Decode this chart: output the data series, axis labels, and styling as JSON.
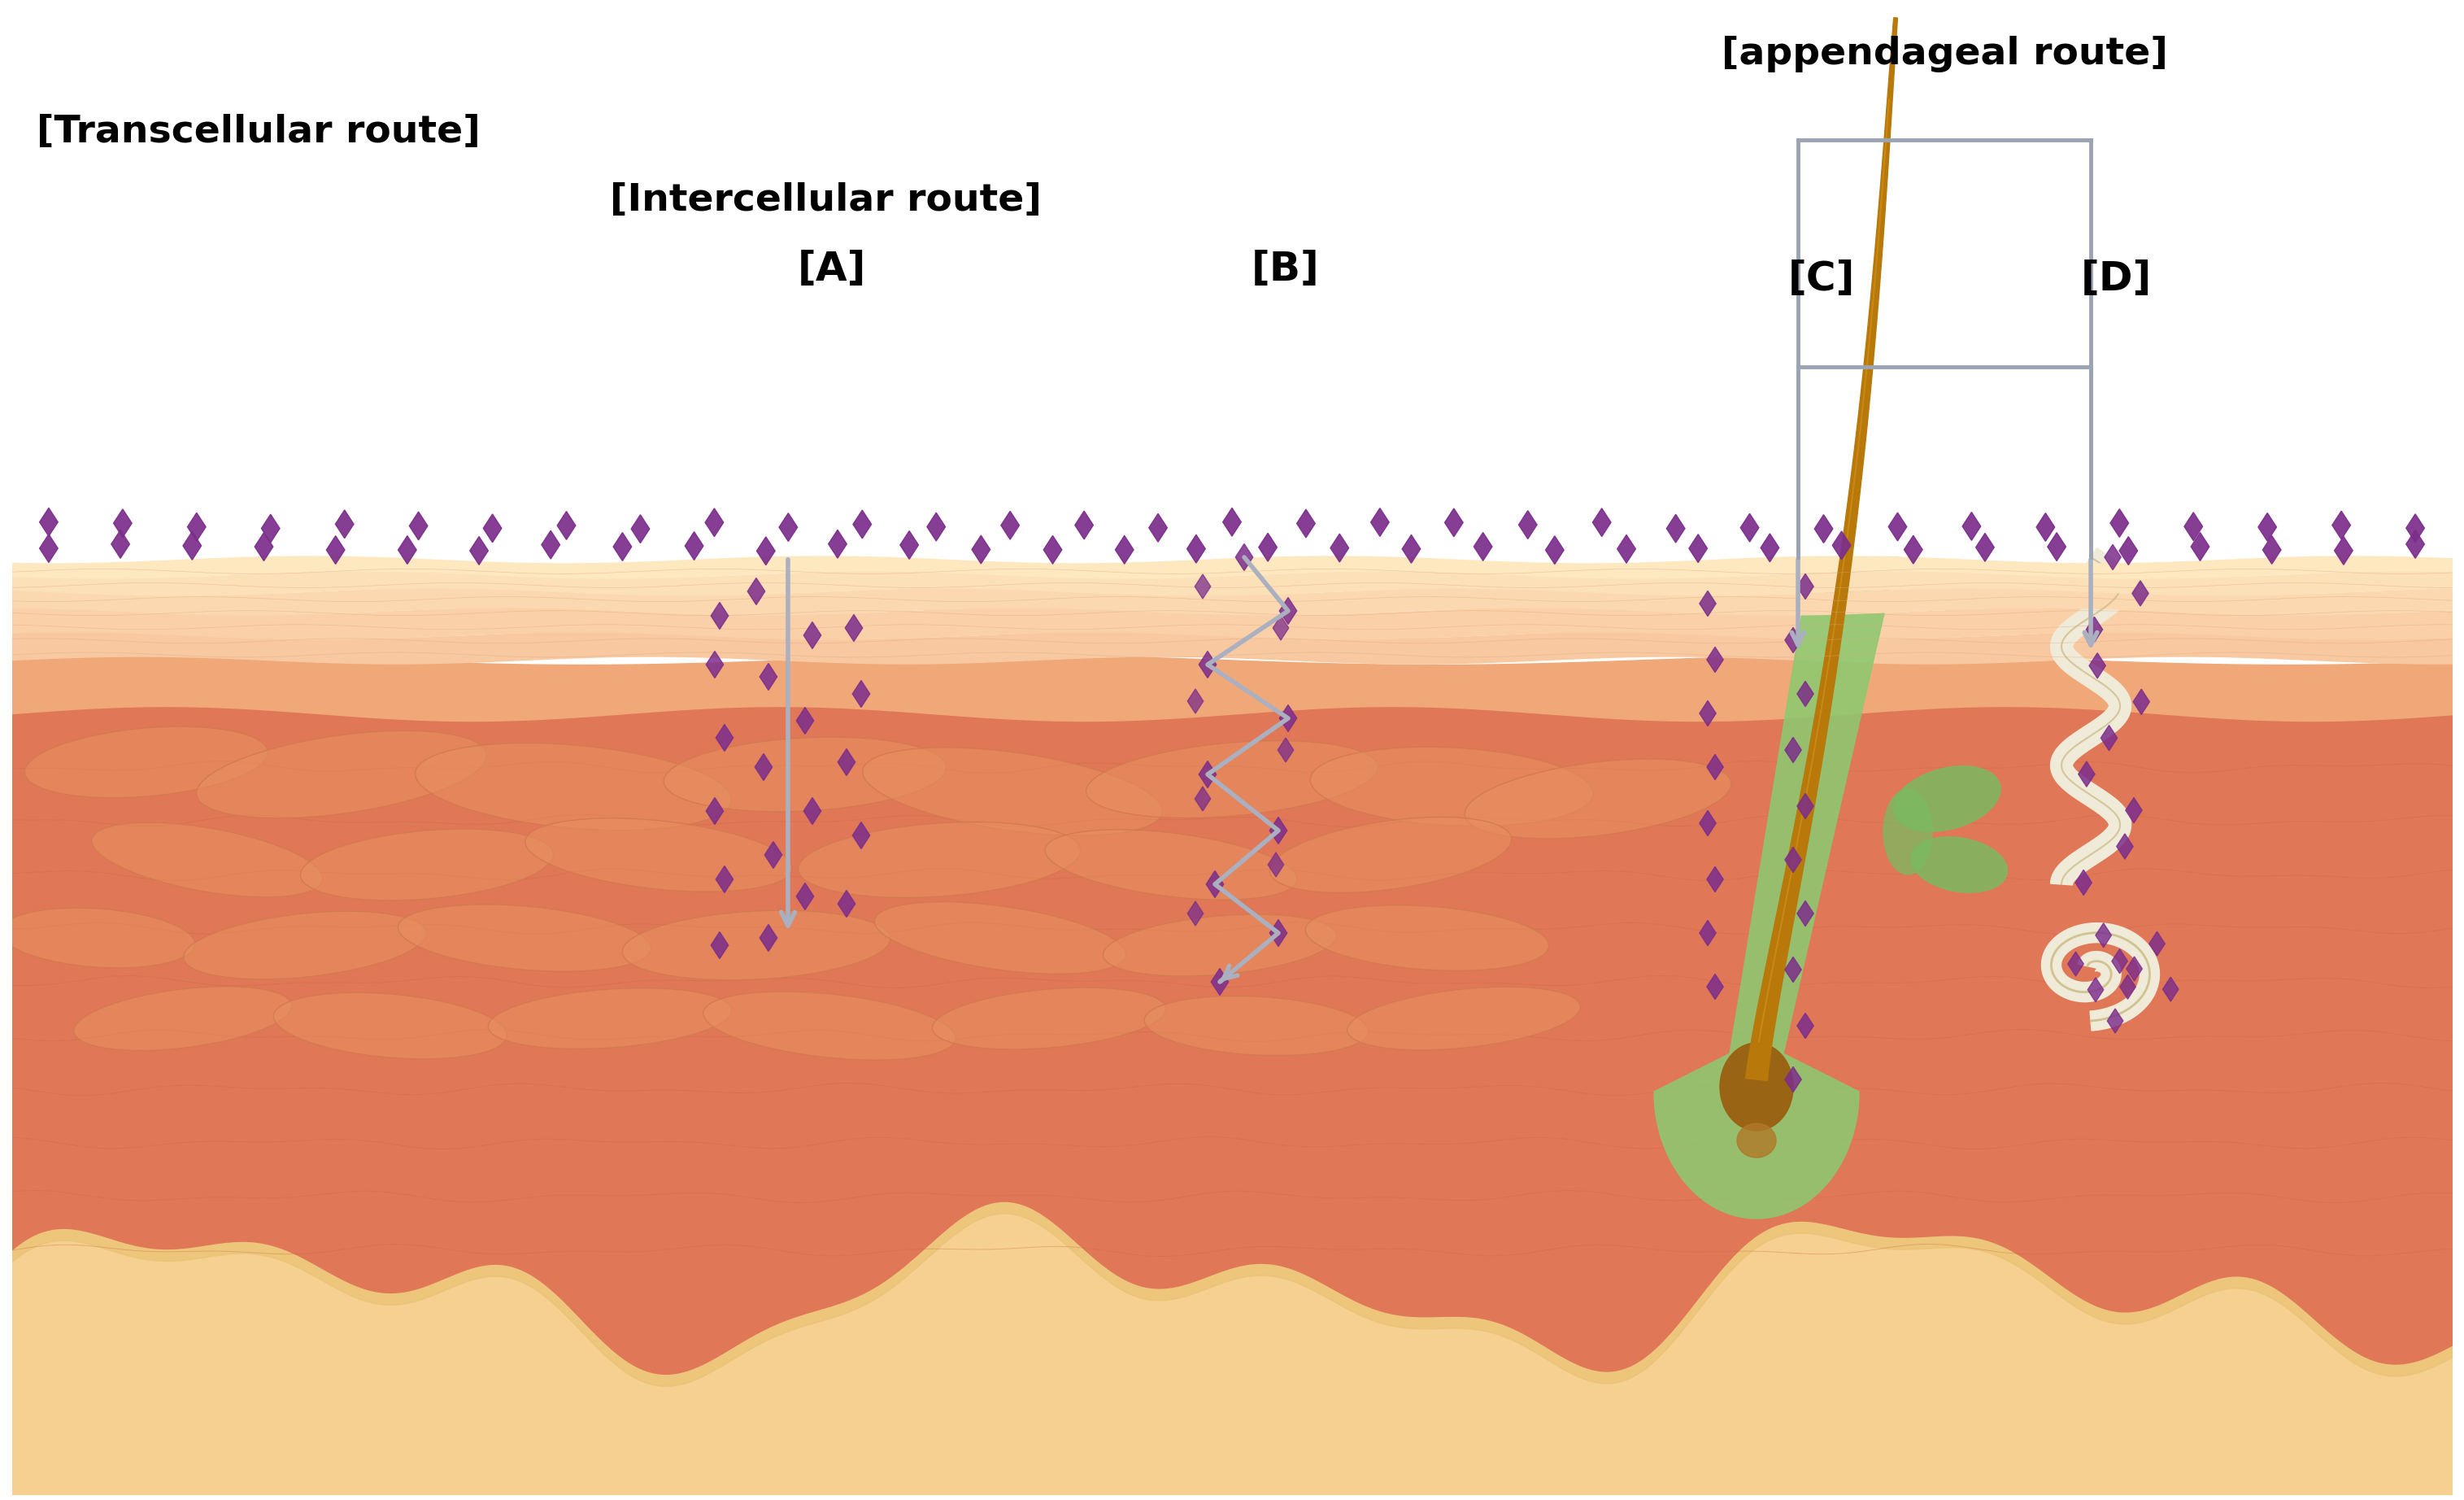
{
  "fig_width": 30.3,
  "fig_height": 18.44,
  "bg_color": "#ffffff",
  "title_appendageal": "[appendageal route]",
  "title_transcellular": "[Transcellular route]",
  "title_intercellular": "[Intercellular route]",
  "label_A": "[A]",
  "label_B": "[B]",
  "label_C": "[C]",
  "label_D": "[D]",
  "particle_color": "#7B2D8B",
  "arrow_color": "#aab0c0",
  "hair_color": "#b8780a",
  "follicle_color": "#8dc870",
  "follicle_dark": "#70aa50",
  "sebaceous_color": "#7aba60",
  "sweat_color": "#f0ead8",
  "sweat_border": "#c8b880",
  "dermis_color": "#e07858",
  "dermis_dark": "#cc6040",
  "epidermis_color": "#f0a070",
  "sc_color": "#f8c8a0",
  "hypodermis_color": "#f5d090",
  "cell_color": "#e89060",
  "cell_border": "#c87048",
  "bracket_color": "#9aa4b5",
  "label_fontsize": 36,
  "route_fontsize": 34,
  "arrow_lw": 4.0,
  "bracket_lw": 3.5
}
